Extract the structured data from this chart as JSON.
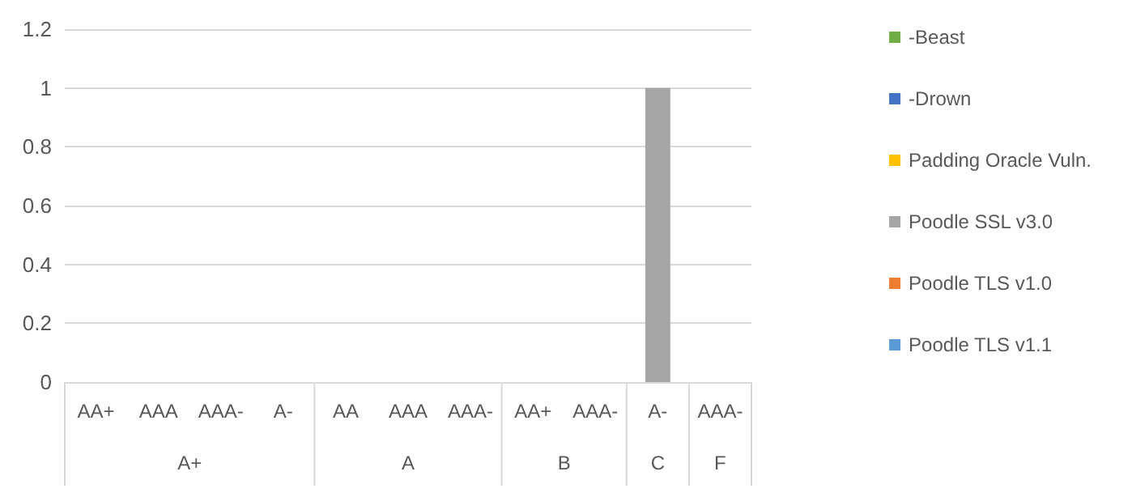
{
  "chart_data": {
    "type": "bar",
    "stacked": true,
    "categories": [
      "AA+",
      "AAA",
      "AAA-",
      "A-",
      "AA",
      "AAA",
      "AAA-",
      "AA+",
      "AAA-",
      "A-",
      "AAA-"
    ],
    "series": [
      {
        "name": "-Beast",
        "color": "#70ad47",
        "values": [
          0,
          0,
          0,
          0,
          0,
          0,
          0,
          0,
          0,
          0,
          0
        ]
      },
      {
        "name": "-Drown",
        "color": "#4472c4",
        "values": [
          0,
          0,
          0,
          0,
          0,
          0,
          0,
          0,
          0,
          0,
          0
        ]
      },
      {
        "name": "Padding Oracle Vuln.",
        "color": "#ffc000",
        "values": [
          0,
          0,
          0,
          0,
          0,
          0,
          0,
          0,
          0,
          0,
          0
        ]
      },
      {
        "name": "Poodle SSL v3.0",
        "color": "#a5a5a5",
        "values": [
          0,
          0,
          0,
          0,
          0,
          0,
          0,
          0,
          0,
          1,
          0
        ]
      },
      {
        "name": "Poodle TLS v1.0",
        "color": "#ed7d31",
        "values": [
          0,
          0,
          0,
          0,
          0,
          0,
          0,
          0,
          0,
          0,
          0
        ]
      },
      {
        "name": "Poodle TLS v1.1",
        "color": "#5b9bd5",
        "values": [
          0,
          0,
          0,
          0,
          0,
          0,
          0,
          0,
          0,
          0,
          0
        ]
      }
    ],
    "annotations": [
      "A+",
      "A",
      "B",
      "C",
      "F"
    ],
    "ylim": [
      0,
      1.2
    ],
    "yticks": [
      0,
      0.2,
      0.4,
      0.6,
      0.8,
      1,
      1.2
    ],
    "grid": "y",
    "legend": "right"
  }
}
